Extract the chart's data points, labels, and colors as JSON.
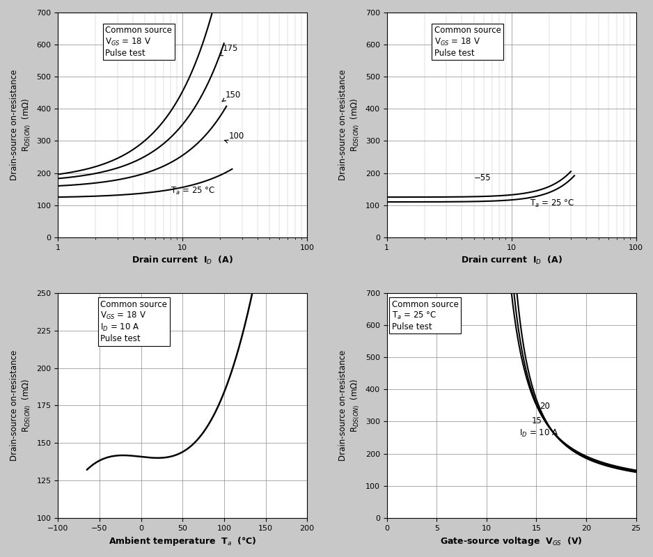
{
  "fig_bg": "#c8c8c8",
  "plot_bg": "#ffffff",
  "grid_color": "#888888",
  "grid_minor_color": "#bbbbbb",
  "line_color": "#000000",
  "font_size_label": 9,
  "font_size_annot": 8.5,
  "font_size_tick": 8,
  "sp1": {
    "info_text": "Common source\nV$_{GS}$ = 18 V\nPulse test",
    "xlabel": "Drain current  I$_D$  (A)",
    "ylabel": "Drain-source on-resistance\nR$_{DS(ON)}$  (mΩ)",
    "xlim": [
      1,
      100
    ],
    "ylim": [
      0,
      700
    ],
    "yticks": [
      0,
      100,
      200,
      300,
      400,
      500,
      600,
      700
    ]
  },
  "sp2": {
    "info_text": "Common source\nV$_{GS}$ = 18 V\nPulse test",
    "xlabel": "Drain current  I$_D$  (A)",
    "ylabel": "Drain-source on-resistance\nR$_{DS(ON)}$  (mΩ)",
    "xlim": [
      1,
      100
    ],
    "ylim": [
      0,
      700
    ],
    "yticks": [
      0,
      100,
      200,
      300,
      400,
      500,
      600,
      700
    ]
  },
  "sp3": {
    "info_text": "Common source\nV$_{GS}$ = 18 V\nI$_D$ = 10 A\nPulse test",
    "xlabel": "Ambient temperature  T$_a$  (°C)",
    "ylabel": "Drain-source on-resistance\nR$_{DS(ON)}$  (mΩ)",
    "xlim": [
      -100,
      200
    ],
    "ylim": [
      100,
      250
    ],
    "yticks": [
      100,
      125,
      150,
      175,
      200,
      225,
      250
    ],
    "xticks": [
      -100,
      -50,
      0,
      50,
      100,
      150,
      200
    ]
  },
  "sp4": {
    "info_text": "Common source\nT$_a$ = 25 °C\nPulse test",
    "xlabel": "Gate-source voltage  V$_{GS}$  (V)",
    "ylabel": "Drain-source on-resistance\nR$_{DS(ON)}$  (mΩ)",
    "xlim": [
      0,
      25
    ],
    "ylim": [
      0,
      700
    ],
    "yticks": [
      0,
      100,
      200,
      300,
      400,
      500,
      600,
      700
    ],
    "xticks": [
      0,
      5,
      10,
      15,
      20,
      25
    ]
  }
}
